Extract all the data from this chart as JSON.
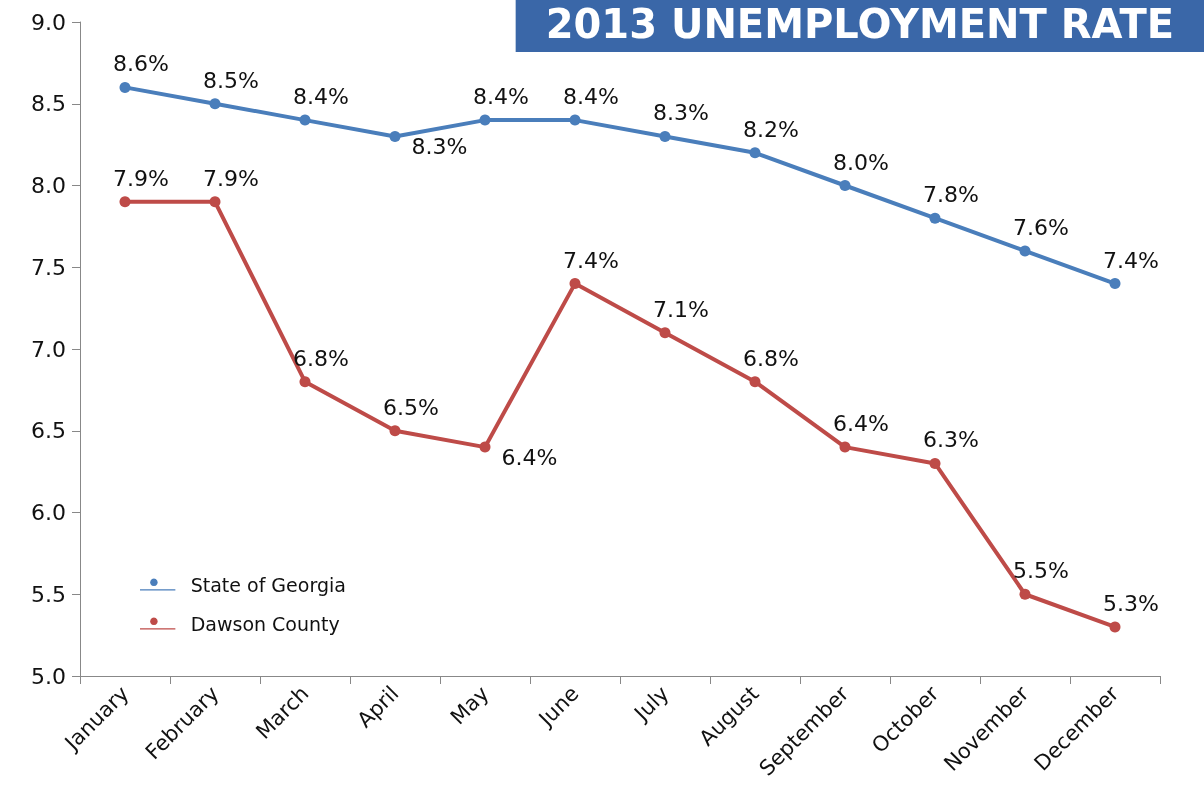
{
  "chart_data": {
    "type": "line",
    "title": "2013 UNEMPLOYMENT RATE",
    "categories": [
      "January",
      "February",
      "March",
      "April",
      "May",
      "June",
      "July",
      "August",
      "September",
      "October",
      "November",
      "December"
    ],
    "series": [
      {
        "name": "State of Georgia",
        "color": "#4a7ebb",
        "values": [
          8.6,
          8.5,
          8.4,
          8.3,
          8.4,
          8.4,
          8.3,
          8.2,
          8.0,
          7.8,
          7.6,
          7.4
        ],
        "value_labels": [
          "8.6%",
          "8.5%",
          "8.4%",
          "8.3%",
          "8.4%",
          "8.4%",
          "8.3%",
          "8.2%",
          "8.0%",
          "7.8%",
          "7.6%",
          "7.4%"
        ]
      },
      {
        "name": "Dawson County",
        "color": "#be4b48",
        "values": [
          7.9,
          7.9,
          6.8,
          6.5,
          6.4,
          7.4,
          7.1,
          6.8,
          6.4,
          6.3,
          5.5,
          5.3
        ],
        "value_labels": [
          "7.9%",
          "7.9%",
          "6.8%",
          "6.5%",
          "6.4%",
          "7.4%",
          "7.1%",
          "6.8%",
          "6.4%",
          "6.3%",
          "5.5%",
          "5.3%"
        ]
      }
    ],
    "ylim": [
      5,
      9
    ],
    "yticks": [
      {
        "value": 5,
        "label": "5.0"
      },
      {
        "value": 5.5,
        "label": "5.5"
      },
      {
        "value": 6,
        "label": "6.0"
      },
      {
        "value": 6.5,
        "label": "6.5"
      },
      {
        "value": 7,
        "label": "7.0"
      },
      {
        "value": 7.5,
        "label": "7.5"
      },
      {
        "value": 8,
        "label": "8.0"
      },
      {
        "value": 8.5,
        "label": "8.5"
      },
      {
        "value": 9,
        "label": "9.0"
      }
    ],
    "grid": false,
    "legend": "bottom left",
    "marker": "circle",
    "line_style": "solid"
  }
}
